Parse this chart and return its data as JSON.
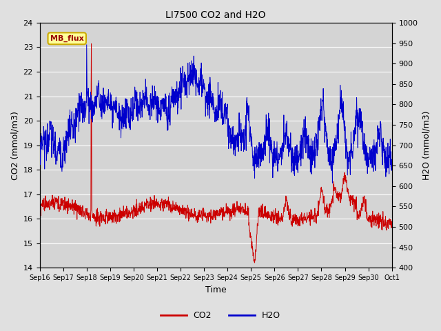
{
  "title": "LI7500 CO2 and H2O",
  "xlabel": "Time",
  "ylabel_left": "CO2 (mmol/m3)",
  "ylabel_right": "H2O (mmol/m3)",
  "ylim_left": [
    14.0,
    24.0
  ],
  "ylim_right": [
    400,
    1000
  ],
  "yticks_left": [
    14.0,
    15.0,
    16.0,
    17.0,
    18.0,
    19.0,
    20.0,
    21.0,
    22.0,
    23.0,
    24.0
  ],
  "yticks_right": [
    400,
    450,
    500,
    550,
    600,
    650,
    700,
    750,
    800,
    850,
    900,
    950,
    1000
  ],
  "xtick_labels": [
    "Sep 16",
    "Sep 17",
    "Sep 18",
    "Sep 19",
    "Sep 20",
    "Sep 21",
    "Sep 22",
    "Sep 23",
    "Sep 24",
    "Sep 25",
    "Sep 26",
    "Sep 27",
    "Sep 28",
    "Sep 29",
    "Sep 30",
    "Oct 1"
  ],
  "co2_color": "#cc0000",
  "h2o_color": "#0000cc",
  "bg_color": "#e0e0e0",
  "plot_bg_color": "#d4d4d4",
  "annotation_text": "MB_flux",
  "annotation_bg": "#ffff99",
  "annotation_border": "#ccaa00",
  "legend_co2": "CO2",
  "legend_h2o": "H2O",
  "figsize": [
    6.4,
    4.8
  ],
  "dpi": 100
}
